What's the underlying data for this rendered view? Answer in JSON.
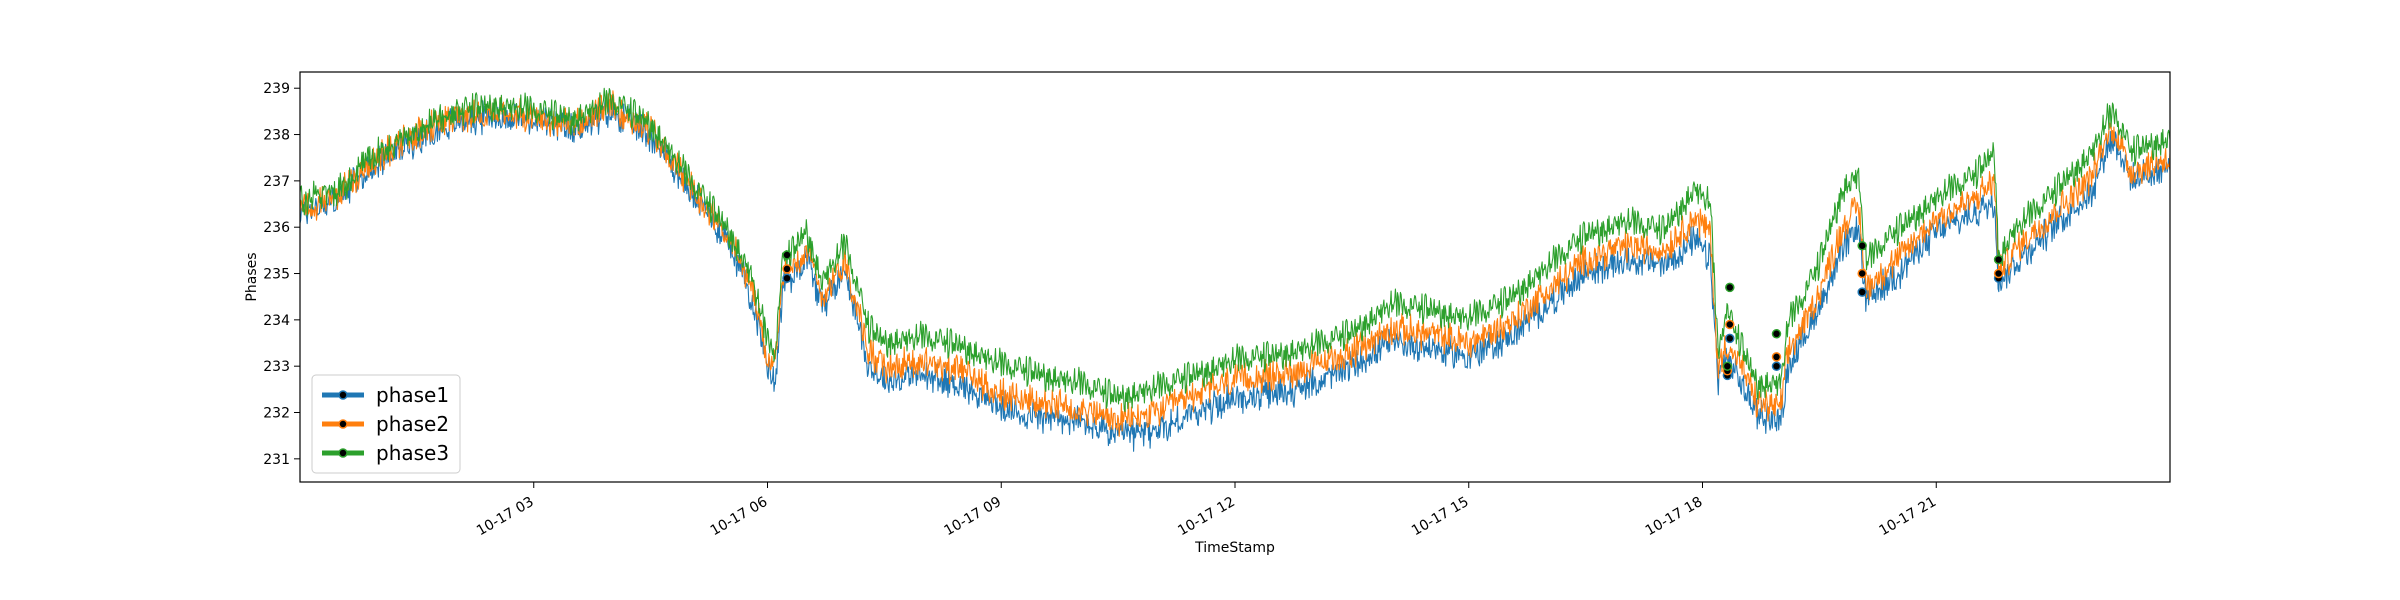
{
  "chart_data": {
    "type": "line",
    "xlabel": "TimeStamp",
    "ylabel": "Phases",
    "x_range": [
      "10-17 00:00",
      "24:00"
    ],
    "ylim": [
      230.5,
      239.35
    ],
    "x_ticks": [
      {
        "hour": 3,
        "label": "10-17 03"
      },
      {
        "hour": 6,
        "label": "10-17 06"
      },
      {
        "hour": 9,
        "label": "10-17 09"
      },
      {
        "hour": 12,
        "label": "10-17 12"
      },
      {
        "hour": 15,
        "label": "10-17 15"
      },
      {
        "hour": 18,
        "label": "10-17 18"
      },
      {
        "hour": 21,
        "label": "10-17 21"
      }
    ],
    "y_ticks": [
      {
        "value": 231,
        "label": "231"
      },
      {
        "value": 232,
        "label": "232"
      },
      {
        "value": 233,
        "label": "233"
      },
      {
        "value": 234,
        "label": "234"
      },
      {
        "value": 235,
        "label": "235"
      },
      {
        "value": 236,
        "label": "236"
      },
      {
        "value": 237,
        "label": "237"
      },
      {
        "value": 238,
        "label": "238"
      },
      {
        "value": 239,
        "label": "239"
      }
    ],
    "grid": false,
    "legend_position": "lower-left",
    "series": [
      {
        "name": "phase1",
        "color": "#1f77b4",
        "x_hours": [
          0,
          0.5,
          1,
          1.5,
          2,
          2.5,
          3,
          3.5,
          4,
          4.5,
          5,
          5.5,
          5.8,
          6,
          6.1,
          6.2,
          6.3,
          6.5,
          6.7,
          7,
          7.3,
          7.5,
          8,
          8.5,
          9,
          9.5,
          10,
          10.5,
          11,
          11.5,
          12,
          12.5,
          13,
          13.5,
          14,
          14.5,
          15,
          15.5,
          16,
          16.5,
          17,
          17.5,
          17.9,
          18.1,
          18.2,
          18.3,
          18.5,
          18.7,
          19.0,
          19.1,
          19.3,
          19.5,
          19.8,
          20.0,
          20.1,
          20.3,
          20.5,
          21,
          21.5,
          21.75,
          21.8,
          22,
          22.5,
          23,
          23.2,
          23.3,
          23.5,
          24
        ],
        "y_values": [
          236.3,
          236.6,
          237.4,
          237.9,
          238.3,
          238.4,
          238.3,
          238.1,
          238.5,
          238.0,
          236.8,
          235.7,
          234.5,
          233.0,
          232.7,
          234.8,
          234.9,
          235.4,
          234.3,
          235.1,
          233.0,
          232.7,
          232.8,
          232.6,
          232.1,
          231.9,
          231.8,
          231.5,
          231.6,
          232.0,
          232.3,
          232.4,
          232.6,
          233.0,
          233.5,
          233.4,
          233.2,
          233.6,
          234.3,
          235.0,
          235.3,
          235.2,
          235.7,
          235.3,
          232.7,
          233.2,
          232.6,
          232.0,
          231.8,
          233.0,
          233.6,
          234.3,
          235.5,
          236.0,
          234.4,
          234.7,
          235.0,
          235.9,
          236.3,
          236.6,
          234.8,
          235.2,
          236.0,
          236.8,
          237.8,
          237.9,
          237.0,
          237.3
        ]
      },
      {
        "name": "phase2",
        "color": "#ff7f0e",
        "x_hours": [
          0,
          0.5,
          1,
          1.5,
          2,
          2.5,
          3,
          3.5,
          4,
          4.5,
          5,
          5.5,
          5.8,
          6,
          6.1,
          6.2,
          6.3,
          6.5,
          6.7,
          7,
          7.3,
          7.5,
          8,
          8.5,
          9,
          9.5,
          10,
          10.5,
          11,
          11.5,
          12,
          12.5,
          13,
          13.5,
          14,
          14.5,
          15,
          15.5,
          16,
          16.5,
          17,
          17.5,
          17.9,
          18.1,
          18.2,
          18.3,
          18.5,
          18.7,
          19.0,
          19.1,
          19.3,
          19.5,
          19.8,
          20.0,
          20.1,
          20.3,
          20.5,
          21,
          21.5,
          21.75,
          21.8,
          22,
          22.5,
          23,
          23.2,
          23.3,
          23.5,
          24
        ],
        "y_values": [
          236.4,
          236.7,
          237.5,
          238.0,
          238.4,
          238.5,
          238.4,
          238.2,
          238.6,
          238.1,
          236.9,
          235.8,
          234.7,
          233.2,
          233.0,
          235.0,
          235.1,
          235.6,
          234.5,
          235.3,
          233.3,
          233.0,
          233.1,
          232.9,
          232.4,
          232.2,
          232.1,
          231.8,
          232.0,
          232.4,
          232.7,
          232.8,
          233.0,
          233.3,
          233.8,
          233.7,
          233.5,
          233.9,
          234.6,
          235.3,
          235.6,
          235.5,
          236.2,
          235.9,
          232.9,
          233.5,
          233.0,
          232.2,
          232.1,
          233.3,
          233.9,
          234.6,
          236.0,
          236.5,
          234.7,
          235.0,
          235.3,
          236.2,
          236.6,
          237.0,
          235.0,
          235.5,
          236.3,
          237.1,
          238.0,
          238.1,
          237.2,
          237.5
        ]
      },
      {
        "name": "phase3",
        "color": "#2ca02c",
        "x_hours": [
          0,
          0.5,
          1,
          1.5,
          2,
          2.5,
          3,
          3.5,
          4,
          4.5,
          5,
          5.5,
          5.8,
          6,
          6.1,
          6.2,
          6.3,
          6.5,
          6.7,
          7,
          7.3,
          7.5,
          8,
          8.5,
          9,
          9.5,
          10,
          10.5,
          11,
          11.5,
          12,
          12.5,
          13,
          13.5,
          14,
          14.5,
          15,
          15.5,
          16,
          16.5,
          17,
          17.5,
          17.9,
          18.1,
          18.2,
          18.3,
          18.5,
          18.7,
          19.0,
          19.1,
          19.3,
          19.5,
          19.8,
          20.0,
          20.1,
          20.3,
          20.5,
          21,
          21.5,
          21.75,
          21.8,
          22,
          22.5,
          23,
          23.2,
          23.3,
          23.5,
          24
        ],
        "y_values": [
          236.5,
          236.8,
          237.6,
          238.1,
          238.5,
          238.6,
          238.5,
          238.3,
          238.7,
          238.2,
          237.0,
          235.9,
          234.9,
          233.5,
          233.3,
          235.3,
          235.4,
          235.9,
          234.8,
          235.6,
          233.8,
          233.5,
          233.6,
          233.4,
          233.0,
          232.8,
          232.6,
          232.3,
          232.5,
          232.8,
          233.1,
          233.2,
          233.4,
          233.7,
          234.3,
          234.2,
          234.0,
          234.4,
          235.1,
          235.8,
          236.1,
          235.9,
          236.8,
          236.5,
          233.2,
          234.2,
          233.4,
          232.6,
          232.6,
          233.9,
          234.5,
          235.2,
          236.8,
          237.1,
          235.2,
          235.6,
          235.9,
          236.6,
          237.1,
          237.6,
          235.3,
          235.9,
          236.7,
          237.6,
          238.3,
          238.4,
          237.6,
          237.9
        ]
      }
    ],
    "markers": [
      {
        "hour": 6.25,
        "values": [
          234.9,
          235.1,
          235.4
        ]
      },
      {
        "hour": 18.35,
        "values": [
          233.6,
          233.9,
          234.7
        ]
      },
      {
        "hour": 18.32,
        "values": [
          232.8,
          232.9,
          233.0
        ]
      },
      {
        "hour": 18.95,
        "values": [
          233.0,
          233.2,
          233.7
        ]
      },
      {
        "hour": 20.05,
        "values": [
          234.6,
          235.0,
          235.6
        ]
      },
      {
        "hour": 21.8,
        "values": [
          234.9,
          235.0,
          235.3
        ]
      }
    ]
  }
}
